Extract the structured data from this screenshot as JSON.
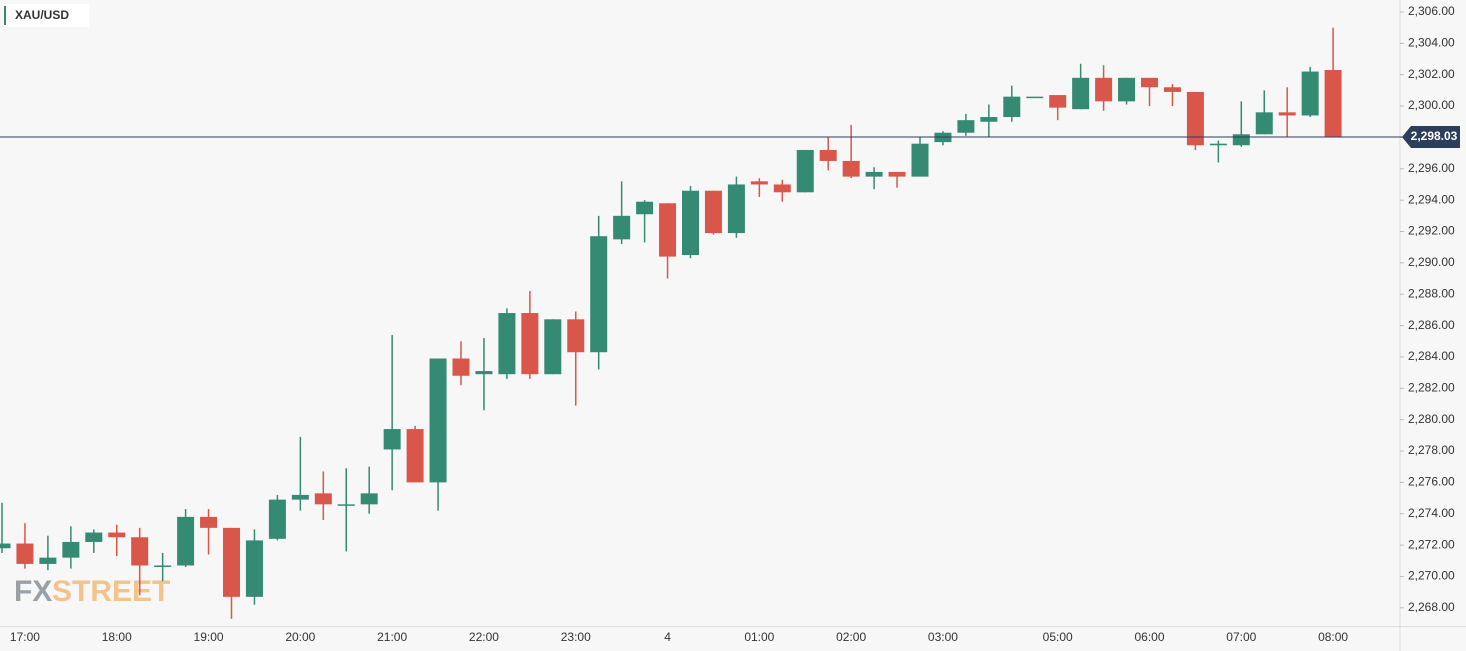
{
  "chart_data": {
    "type": "candlestick",
    "title": "XAU/USD",
    "categories": [
      null,
      "17:00",
      null,
      null,
      null,
      "18:00",
      null,
      null,
      null,
      "19:00",
      null,
      null,
      null,
      "20:00",
      null,
      null,
      null,
      "21:00",
      null,
      null,
      null,
      "22:00",
      null,
      null,
      null,
      "23:00",
      null,
      null,
      null,
      "4",
      null,
      null,
      null,
      "01:00",
      null,
      null,
      null,
      "02:00",
      null,
      null,
      null,
      "03:00",
      null,
      null,
      null,
      null,
      "05:00",
      null,
      null,
      null,
      "06:00",
      null,
      null,
      null,
      "07:00",
      null,
      null,
      null,
      "08:00"
    ],
    "open": [
      2271.8,
      2272.1,
      2270.8,
      2271.2,
      2272.2,
      2272.8,
      2272.5,
      2270.7,
      2270.7,
      2273.8,
      2273.1,
      2268.7,
      2272.4,
      2274.9,
      2275.3,
      2274.6,
      2274.6,
      2278.1,
      2279.4,
      2276.0,
      2283.9,
      2282.9,
      2282.9,
      2286.8,
      2282.9,
      2286.4,
      2284.3,
      2291.5,
      2293.1,
      2293.8,
      2290.5,
      2294.6,
      2291.9,
      2295.2,
      2295.0,
      2294.5,
      2297.2,
      2296.5,
      2295.5,
      2295.8,
      2295.5,
      2297.7,
      2298.3,
      2299.0,
      2299.3,
      2300.6,
      2300.7,
      2299.8,
      2301.8,
      2300.3,
      2301.8,
      2301.2,
      2300.9,
      2297.5,
      2297.5,
      2298.2,
      2299.6,
      2299.4,
      2302.3
    ],
    "high": [
      2274.7,
      2273.4,
      2272.6,
      2273.2,
      2273.0,
      2273.3,
      2273.1,
      2271.5,
      2274.3,
      2274.3,
      2273.1,
      2273.0,
      2275.2,
      2278.9,
      2276.7,
      2276.9,
      2277.0,
      2285.4,
      2279.6,
      2283.9,
      2285.0,
      2285.2,
      2287.1,
      2288.2,
      2286.4,
      2286.9,
      2293.0,
      2295.2,
      2294.0,
      2293.8,
      2294.9,
      2294.6,
      2295.5,
      2295.4,
      2295.3,
      2297.2,
      2298.0,
      2298.8,
      2296.1,
      2295.8,
      2298.0,
      2298.4,
      2299.5,
      2300.1,
      2301.3,
      2300.6,
      2300.7,
      2302.7,
      2302.6,
      2301.8,
      2301.8,
      2301.4,
      2300.9,
      2297.8,
      2300.3,
      2301.0,
      2301.2,
      2302.5,
      2305.0
    ],
    "low": [
      2271.5,
      2270.5,
      2270.4,
      2270.5,
      2271.5,
      2271.3,
      2268.8,
      2269.7,
      2270.6,
      2271.4,
      2267.3,
      2268.2,
      2272.3,
      2274.2,
      2273.6,
      2271.6,
      2274.0,
      2275.5,
      2276.0,
      2274.2,
      2282.2,
      2280.6,
      2282.6,
      2282.6,
      2282.9,
      2280.9,
      2283.2,
      2291.2,
      2291.3,
      2289.0,
      2290.3,
      2291.8,
      2291.6,
      2294.2,
      2293.9,
      2294.5,
      2295.9,
      2295.4,
      2294.7,
      2294.8,
      2295.5,
      2297.5,
      2298.1,
      2298.0,
      2299.0,
      2300.6,
      2299.1,
      2299.8,
      2299.7,
      2300.1,
      2300.0,
      2300.0,
      2297.2,
      2296.4,
      2297.4,
      2298.2,
      2298.0,
      2299.3,
      2298.0
    ],
    "close": [
      2272.1,
      2270.8,
      2271.2,
      2272.2,
      2272.8,
      2272.5,
      2270.7,
      2270.7,
      2273.8,
      2273.1,
      2268.7,
      2272.3,
      2274.9,
      2275.2,
      2274.6,
      2274.6,
      2275.3,
      2279.4,
      2276.0,
      2283.9,
      2282.8,
      2283.1,
      2286.8,
      2282.9,
      2286.4,
      2284.3,
      2291.7,
      2293.0,
      2293.9,
      2290.4,
      2294.6,
      2291.9,
      2295.0,
      2295.0,
      2294.5,
      2297.2,
      2296.5,
      2295.5,
      2295.8,
      2295.5,
      2297.6,
      2298.3,
      2299.1,
      2299.3,
      2300.6,
      2300.6,
      2299.9,
      2301.8,
      2300.3,
      2301.8,
      2301.2,
      2300.9,
      2297.5,
      2297.6,
      2298.2,
      2299.6,
      2299.4,
      2302.2,
      2298.0
    ],
    "up_color": "#358a74",
    "down_color": "#d9574a",
    "ylim": [
      2267,
      2307
    ],
    "yticks": [
      {
        "value": 2268,
        "label": "2,268.00"
      },
      {
        "value": 2270,
        "label": "2,270.00"
      },
      {
        "value": 2272,
        "label": "2,272.00"
      },
      {
        "value": 2274,
        "label": "2,274.00"
      },
      {
        "value": 2276,
        "label": "2,276.00"
      },
      {
        "value": 2278,
        "label": "2,278.00"
      },
      {
        "value": 2280,
        "label": "2,280.00"
      },
      {
        "value": 2282,
        "label": "2,282.00"
      },
      {
        "value": 2284,
        "label": "2,284.00"
      },
      {
        "value": 2286,
        "label": "2,286.00"
      },
      {
        "value": 2288,
        "label": "2,288.00"
      },
      {
        "value": 2290,
        "label": "2,290.00"
      },
      {
        "value": 2292,
        "label": "2,292.00"
      },
      {
        "value": 2294,
        "label": "2,294.00"
      },
      {
        "value": 2296,
        "label": "2,296.00"
      },
      {
        "value": 2298,
        "label": "2,298.00"
      },
      {
        "value": 2300,
        "label": "2,300.00"
      },
      {
        "value": 2302,
        "label": "2,302.00"
      },
      {
        "value": 2304,
        "label": "2,304.00"
      },
      {
        "value": 2306,
        "label": "2,306.00"
      }
    ],
    "current_price": {
      "value": 2298.03,
      "label": "2,298.03"
    },
    "watermark": {
      "fx": "FX",
      "street": "STREET"
    }
  }
}
